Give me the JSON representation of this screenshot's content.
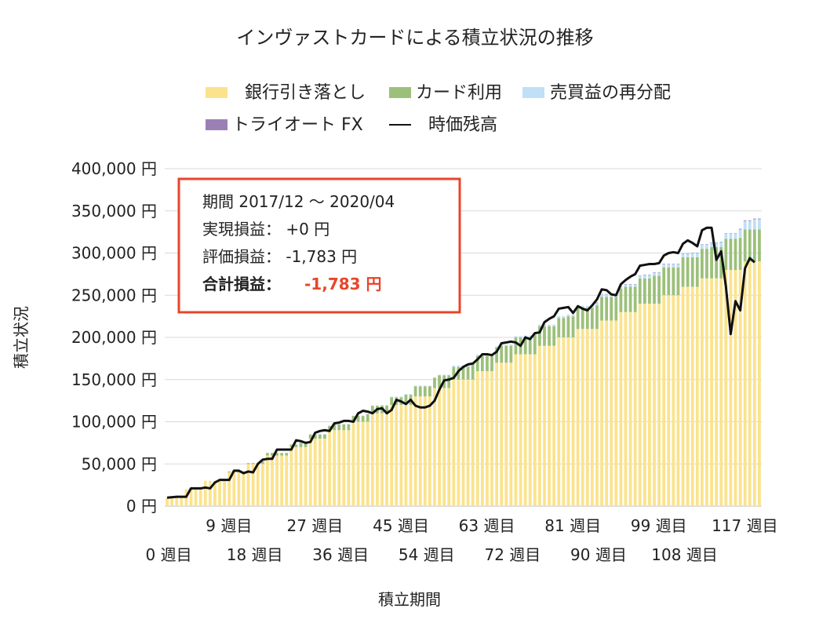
{
  "chart_data": {
    "type": "bar",
    "title": "インヴァストカードによる積立状況の推移",
    "xlabel": "積立期間",
    "ylabel": "積立状況",
    "ylim": [
      0,
      400000
    ],
    "yticks": [
      "0 円",
      "50,000 円",
      "100,000 円",
      "150,000 円",
      "200,000 円",
      "250,000 円",
      "300,000 円",
      "350,000 円",
      "400,000 円"
    ],
    "xticks_row1": [
      "9 週目",
      "27 週目",
      "45 週目",
      "63 週目",
      "81 週目",
      "99 週目",
      "117 週目"
    ],
    "xticks_row2": [
      "0 週目",
      "18 週目",
      "36 週目",
      "54 週目",
      "72 週目",
      "90 週目",
      "108 週目"
    ],
    "grid": true,
    "legend_position": "top",
    "weeks": 125,
    "colors": {
      "bank": "#fbe38d",
      "bank_stripe": "#ffffff",
      "card": "#9cc07a",
      "resale": "#bfe0f6",
      "triauto": "#9b80b6",
      "line": "#111111",
      "grid": "#d9d9d9"
    },
    "series": [
      {
        "name": "銀行引き落とし",
        "kind": "bar",
        "steps": [
          [
            0,
            10000
          ],
          [
            4,
            20000
          ],
          [
            8,
            30000
          ],
          [
            13,
            40000
          ],
          [
            17,
            50000
          ],
          [
            21,
            60000
          ],
          [
            26,
            70000
          ],
          [
            30,
            80000
          ],
          [
            34,
            90000
          ],
          [
            39,
            100000
          ],
          [
            43,
            110000
          ],
          [
            47,
            120000
          ],
          [
            52,
            130000
          ],
          [
            56,
            140000
          ],
          [
            60,
            150000
          ],
          [
            65,
            160000
          ],
          [
            69,
            170000
          ],
          [
            73,
            180000
          ],
          [
            78,
            190000
          ],
          [
            82,
            200000
          ],
          [
            86,
            210000
          ],
          [
            91,
            220000
          ],
          [
            95,
            230000
          ],
          [
            99,
            240000
          ],
          [
            104,
            250000
          ],
          [
            108,
            260000
          ],
          [
            112,
            270000
          ],
          [
            117,
            280000
          ],
          [
            121,
            290000
          ]
        ]
      },
      {
        "name": "カード利用",
        "kind": "bar",
        "steps": [
          [
            0,
            0
          ],
          [
            12,
            1000
          ],
          [
            20,
            3000
          ],
          [
            28,
            5000
          ],
          [
            35,
            7000
          ],
          [
            42,
            9000
          ],
          [
            50,
            12000
          ],
          [
            57,
            15000
          ],
          [
            64,
            18000
          ],
          [
            70,
            20000
          ],
          [
            77,
            23000
          ],
          [
            84,
            25000
          ],
          [
            90,
            28000
          ],
          [
            96,
            30000
          ],
          [
            102,
            33000
          ],
          [
            108,
            35000
          ],
          [
            114,
            37000
          ],
          [
            120,
            38000
          ]
        ]
      },
      {
        "name": "売買益の再分配",
        "kind": "bar",
        "steps": [
          [
            0,
            0
          ],
          [
            30,
            300
          ],
          [
            45,
            800
          ],
          [
            60,
            1500
          ],
          [
            75,
            2200
          ],
          [
            90,
            3000
          ],
          [
            100,
            4000
          ],
          [
            110,
            5000
          ],
          [
            116,
            6000
          ],
          [
            120,
            10000
          ],
          [
            123,
            12000
          ]
        ]
      },
      {
        "name": "トライオート FX",
        "kind": "bar",
        "steps": [
          [
            0,
            0
          ],
          [
            90,
            300
          ],
          [
            110,
            500
          ],
          [
            120,
            800
          ]
        ]
      },
      {
        "name": "時価残高",
        "kind": "line",
        "points": [
          [
            0,
            10000
          ],
          [
            2,
            11000
          ],
          [
            4,
            11000
          ],
          [
            5,
            21000
          ],
          [
            7,
            21000
          ],
          [
            8,
            22000
          ],
          [
            9,
            21000
          ],
          [
            10,
            28000
          ],
          [
            11,
            31000
          ],
          [
            12,
            31000
          ],
          [
            13,
            31000
          ],
          [
            14,
            42000
          ],
          [
            15,
            42000
          ],
          [
            16,
            39000
          ],
          [
            17,
            41000
          ],
          [
            18,
            40000
          ],
          [
            19,
            50000
          ],
          [
            20,
            55000
          ],
          [
            21,
            56000
          ],
          [
            22,
            56000
          ],
          [
            23,
            67000
          ],
          [
            24,
            67000
          ],
          [
            26,
            67000
          ],
          [
            27,
            78000
          ],
          [
            28,
            77000
          ],
          [
            29,
            75000
          ],
          [
            30,
            76000
          ],
          [
            31,
            87000
          ],
          [
            32,
            89000
          ],
          [
            33,
            90000
          ],
          [
            34,
            89000
          ],
          [
            35,
            98000
          ],
          [
            36,
            99000
          ],
          [
            37,
            101000
          ],
          [
            38,
            101000
          ],
          [
            39,
            100000
          ],
          [
            40,
            110000
          ],
          [
            41,
            113000
          ],
          [
            42,
            112000
          ],
          [
            43,
            110000
          ],
          [
            44,
            115000
          ],
          [
            45,
            116000
          ],
          [
            46,
            110000
          ],
          [
            47,
            114000
          ],
          [
            48,
            126000
          ],
          [
            49,
            124000
          ],
          [
            50,
            121000
          ],
          [
            51,
            126000
          ],
          [
            52,
            119000
          ],
          [
            53,
            117000
          ],
          [
            54,
            117000
          ],
          [
            55,
            119000
          ],
          [
            56,
            125000
          ],
          [
            57,
            138000
          ],
          [
            58,
            149000
          ],
          [
            59,
            150000
          ],
          [
            60,
            152000
          ],
          [
            61,
            160000
          ],
          [
            62,
            165000
          ],
          [
            63,
            168000
          ],
          [
            64,
            169000
          ],
          [
            65,
            174000
          ],
          [
            66,
            180000
          ],
          [
            67,
            180000
          ],
          [
            68,
            179000
          ],
          [
            69,
            183000
          ],
          [
            70,
            193000
          ],
          [
            71,
            194000
          ],
          [
            72,
            195000
          ],
          [
            73,
            194000
          ],
          [
            74,
            190000
          ],
          [
            75,
            200000
          ],
          [
            76,
            198000
          ],
          [
            77,
            205000
          ],
          [
            78,
            206000
          ],
          [
            79,
            218000
          ],
          [
            80,
            222000
          ],
          [
            81,
            225000
          ],
          [
            82,
            234000
          ],
          [
            83,
            235000
          ],
          [
            84,
            236000
          ],
          [
            85,
            229000
          ],
          [
            86,
            237000
          ],
          [
            87,
            234000
          ],
          [
            88,
            232000
          ],
          [
            89,
            238000
          ],
          [
            90,
            245000
          ],
          [
            91,
            257000
          ],
          [
            92,
            256000
          ],
          [
            93,
            251000
          ],
          [
            94,
            250000
          ],
          [
            95,
            263000
          ],
          [
            96,
            268000
          ],
          [
            97,
            272000
          ],
          [
            98,
            275000
          ],
          [
            99,
            285000
          ],
          [
            100,
            286000
          ],
          [
            101,
            287000
          ],
          [
            102,
            287000
          ],
          [
            103,
            288000
          ],
          [
            104,
            297000
          ],
          [
            105,
            300000
          ],
          [
            106,
            301000
          ],
          [
            107,
            300000
          ],
          [
            108,
            311000
          ],
          [
            109,
            315000
          ],
          [
            110,
            312000
          ],
          [
            111,
            308000
          ],
          [
            112,
            327000
          ],
          [
            113,
            330000
          ],
          [
            114,
            330000
          ],
          [
            115,
            292000
          ],
          [
            116,
            302000
          ],
          [
            117,
            260000
          ],
          [
            118,
            204000
          ],
          [
            119,
            243000
          ],
          [
            120,
            232000
          ],
          [
            121,
            282000
          ],
          [
            122,
            294000
          ],
          [
            123,
            289000
          ]
        ]
      }
    ]
  },
  "info_box": {
    "period": "期間 2017/12 ～ 2020/04",
    "realized": "実現損益：  +0 円",
    "unrealized": "評価損益：  -1,783 円",
    "total_label": "合計損益：",
    "total_value": "-1,783 円"
  }
}
